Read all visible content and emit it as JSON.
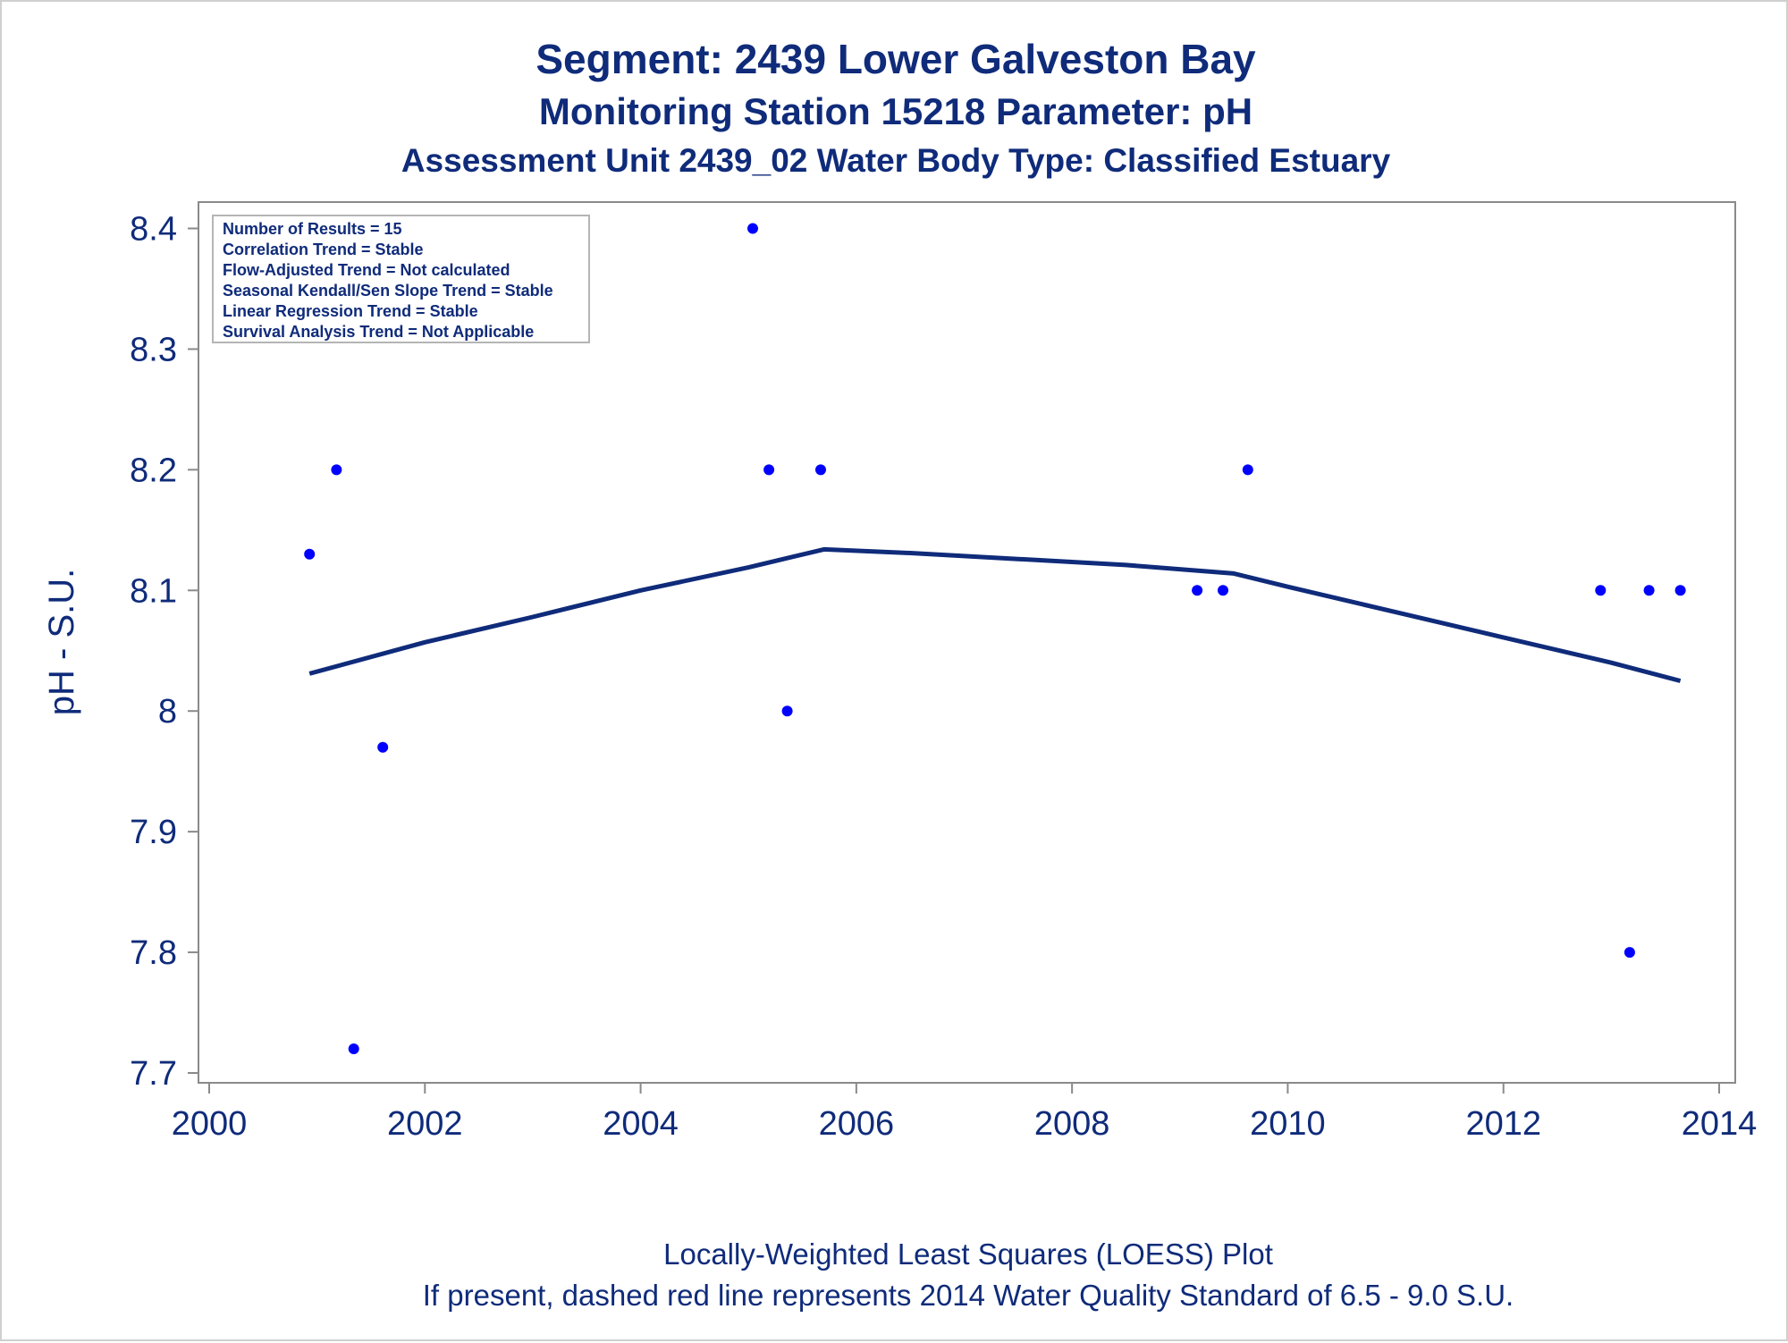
{
  "chart_data": {
    "type": "scatter",
    "title": "Segment: 2439  Lower Galveston Bay",
    "subtitle_1": "Monitoring Station 15218 Parameter: pH",
    "subtitle_2": "Assessment Unit 2439_02   Water Body Type: Classified Estuary",
    "xlabel": "",
    "ylabel": "pH - S.U.",
    "xlim": [
      2000,
      2014
    ],
    "ylim": [
      7.7,
      8.41
    ],
    "x_ticks": [
      2000,
      2002,
      2004,
      2006,
      2008,
      2010,
      2012,
      2014
    ],
    "y_ticks": [
      7.7,
      7.8,
      7.9,
      8,
      8.1,
      8.2,
      8.3,
      8.4
    ],
    "grid": false,
    "series": [
      {
        "type": "scatter",
        "color": "#0000ff",
        "points": [
          {
            "x": 2000.93,
            "y": 8.13
          },
          {
            "x": 2001.18,
            "y": 8.2
          },
          {
            "x": 2001.34,
            "y": 7.72
          },
          {
            "x": 2001.61,
            "y": 7.97
          },
          {
            "x": 2005.04,
            "y": 8.4
          },
          {
            "x": 2005.19,
            "y": 8.2
          },
          {
            "x": 2005.36,
            "y": 8.0
          },
          {
            "x": 2005.67,
            "y": 8.2
          },
          {
            "x": 2009.16,
            "y": 8.1
          },
          {
            "x": 2009.4,
            "y": 8.1
          },
          {
            "x": 2009.63,
            "y": 8.2
          },
          {
            "x": 2012.9,
            "y": 8.1
          },
          {
            "x": 2013.17,
            "y": 7.8
          },
          {
            "x": 2013.35,
            "y": 8.1
          },
          {
            "x": 2013.64,
            "y": 8.1
          }
        ]
      },
      {
        "type": "line",
        "color": "#0f2b7a",
        "points": [
          {
            "x": 2000.93,
            "y": 8.031
          },
          {
            "x": 2002.0,
            "y": 8.057
          },
          {
            "x": 2003.0,
            "y": 8.078
          },
          {
            "x": 2004.0,
            "y": 8.1
          },
          {
            "x": 2005.0,
            "y": 8.119
          },
          {
            "x": 2005.7,
            "y": 8.134
          },
          {
            "x": 2006.5,
            "y": 8.131
          },
          {
            "x": 2007.5,
            "y": 8.126
          },
          {
            "x": 2008.5,
            "y": 8.121
          },
          {
            "x": 2009.5,
            "y": 8.114
          },
          {
            "x": 2010.0,
            "y": 8.103
          },
          {
            "x": 2011.0,
            "y": 8.082
          },
          {
            "x": 2012.0,
            "y": 8.061
          },
          {
            "x": 2013.0,
            "y": 8.04
          },
          {
            "x": 2013.64,
            "y": 8.025
          }
        ]
      }
    ],
    "annotations": [
      "Number of Results = 15",
      "Correlation Trend = Stable",
      "Flow-Adjusted Trend = Not calculated",
      "Seasonal Kendall/Sen Slope Trend = Stable",
      "Linear Regression Trend = Stable",
      "Survival Analysis Trend = Not Applicable"
    ],
    "footnotes": [
      "Locally-Weighted Least Squares (LOESS) Plot",
      "If present, dashed red line represents 2014 Water Quality Standard of 6.5 - 9.0 S.U."
    ]
  }
}
